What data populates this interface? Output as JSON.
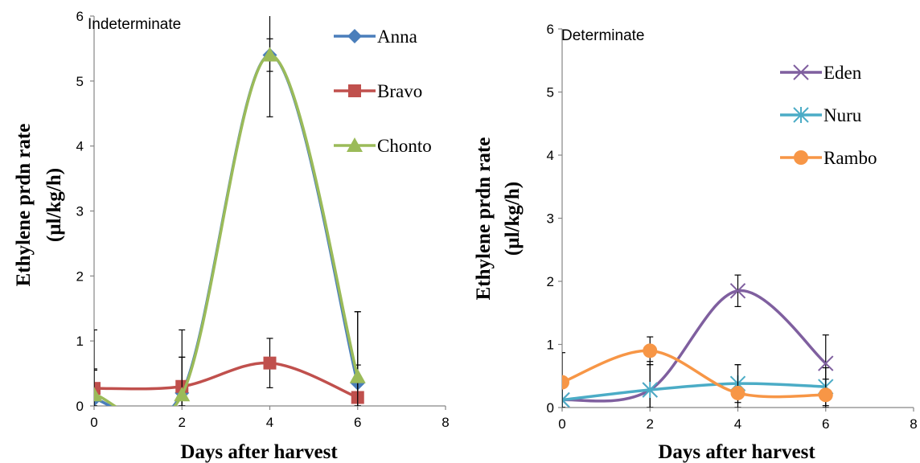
{
  "chart_data": [
    {
      "type": "line",
      "title": "Indeterminate",
      "xlabel": "Days after harvest",
      "ylabel": [
        "Ethylene prdn rate",
        "(µl/kg/h)"
      ],
      "xlim": [
        0,
        8
      ],
      "ylim": [
        0,
        6
      ],
      "xticks": [
        0,
        2,
        4,
        6,
        8
      ],
      "yticks": [
        0,
        1,
        2,
        3,
        4,
        5,
        6
      ],
      "grid": false,
      "legend_position": "right",
      "x": [
        0,
        2,
        4,
        6
      ],
      "series": [
        {
          "name": "Anna",
          "color": "#4a7ebb",
          "marker": "diamond",
          "values": [
            0.1,
            0.2,
            5.4,
            0.35
          ],
          "errors": [
            0.45,
            0.55,
            0.25,
            1.1
          ]
        },
        {
          "name": "Bravo",
          "color": "#c0504d",
          "marker": "square",
          "values": [
            0.27,
            0.3,
            0.66,
            0.13
          ],
          "errors": [
            0.3,
            0.45,
            0.38,
            0.5
          ]
        },
        {
          "name": "Chonto",
          "color": "#9bbb59",
          "marker": "triangle",
          "values": [
            0.17,
            0.17,
            5.4,
            0.45
          ],
          "errors": [
            1.0,
            1.0,
            0.95,
            1.0
          ]
        }
      ]
    },
    {
      "type": "line",
      "title": "Determinate",
      "xlabel": "Days after harvest",
      "ylabel": [
        "Ethylene prdn rate",
        "(µl/kg/h)"
      ],
      "xlim": [
        0,
        8
      ],
      "ylim": [
        0,
        6
      ],
      "xticks": [
        0,
        2,
        4,
        6,
        8
      ],
      "yticks": [
        0,
        1,
        2,
        3,
        4,
        5,
        6
      ],
      "grid": false,
      "legend_position": "right",
      "x": [
        0,
        2,
        4,
        6
      ],
      "series": [
        {
          "name": "Eden",
          "color": "#7f5f9f",
          "marker": "x",
          "values": [
            0.12,
            0.28,
            1.85,
            0.7
          ],
          "errors": [
            0.3,
            0.45,
            0.25,
            0.45
          ]
        },
        {
          "name": "Nuru",
          "color": "#4bacc6",
          "marker": "star",
          "values": [
            0.12,
            0.28,
            0.38,
            0.33
          ],
          "errors": [
            0.3,
            0.4,
            0.3,
            0.3
          ]
        },
        {
          "name": "Rambo",
          "color": "#f79646",
          "marker": "circle",
          "values": [
            0.4,
            0.9,
            0.23,
            0.2
          ],
          "errors": [
            0.47,
            0.22,
            0.45,
            0.25
          ]
        }
      ]
    }
  ]
}
